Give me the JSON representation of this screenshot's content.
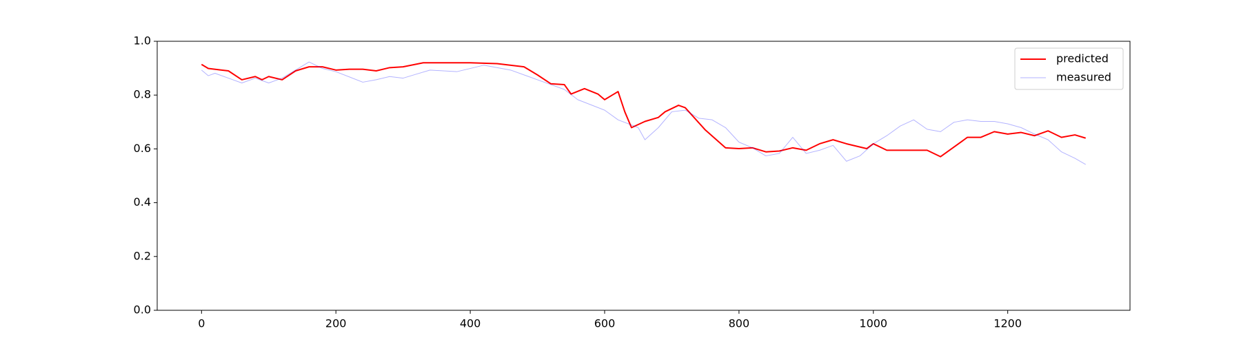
{
  "chart_data": {
    "type": "line",
    "xlim": [
      -66,
      1382
    ],
    "ylim": [
      0,
      1
    ],
    "xticks": [
      0,
      200,
      400,
      600,
      800,
      1000,
      1200
    ],
    "yticks": [
      {
        "value": 0,
        "label": "0.0"
      },
      {
        "value": 0.2,
        "label": "0.2"
      },
      {
        "value": 0.4,
        "label": "0.4"
      },
      {
        "value": 0.6,
        "label": "0.6"
      },
      {
        "value": 0.8,
        "label": "0.8"
      },
      {
        "value": 1,
        "label": "1.0"
      }
    ],
    "legend": "upper right",
    "series": [
      {
        "name": "predicted",
        "color": "#ff0000",
        "width": 2,
        "alpha": 1,
        "x": [
          0,
          10,
          30,
          40,
          60,
          80,
          90,
          100,
          120,
          140,
          160,
          180,
          200,
          220,
          240,
          260,
          280,
          300,
          330,
          360,
          400,
          440,
          480,
          500,
          520,
          540,
          550,
          570,
          590,
          600,
          620,
          630,
          640,
          660,
          680,
          690,
          710,
          720,
          750,
          780,
          800,
          820,
          840,
          860,
          880,
          900,
          920,
          940,
          960,
          990,
          1000,
          1020,
          1060,
          1080,
          1100,
          1120,
          1140,
          1160,
          1180,
          1200,
          1220,
          1240,
          1260,
          1280,
          1300,
          1316
        ],
        "values": [
          0.914,
          0.899,
          0.893,
          0.89,
          0.857,
          0.869,
          0.857,
          0.869,
          0.857,
          0.89,
          0.905,
          0.905,
          0.893,
          0.896,
          0.896,
          0.89,
          0.902,
          0.905,
          0.92,
          0.92,
          0.92,
          0.917,
          0.905,
          0.875,
          0.842,
          0.839,
          0.804,
          0.824,
          0.804,
          0.783,
          0.813,
          0.738,
          0.679,
          0.702,
          0.717,
          0.738,
          0.762,
          0.753,
          0.67,
          0.604,
          0.601,
          0.604,
          0.589,
          0.592,
          0.604,
          0.595,
          0.619,
          0.634,
          0.619,
          0.601,
          0.619,
          0.595,
          0.595,
          0.595,
          0.571,
          0.607,
          0.643,
          0.643,
          0.664,
          0.655,
          0.661,
          0.649,
          0.667,
          0.643,
          0.652,
          0.64
        ]
      },
      {
        "name": "measured",
        "color": "#0000ff",
        "width": 1,
        "alpha": 0.3,
        "x": [
          0,
          10,
          20,
          40,
          60,
          80,
          100,
          120,
          140,
          160,
          180,
          200,
          240,
          260,
          280,
          300,
          320,
          340,
          380,
          420,
          460,
          500,
          540,
          560,
          600,
          620,
          650,
          660,
          680,
          700,
          720,
          740,
          760,
          780,
          800,
          820,
          840,
          860,
          880,
          900,
          920,
          940,
          960,
          980,
          1000,
          1020,
          1040,
          1060,
          1080,
          1100,
          1120,
          1140,
          1160,
          1180,
          1200,
          1220,
          1240,
          1260,
          1280,
          1300,
          1316
        ],
        "values": [
          0.893,
          0.872,
          0.881,
          0.863,
          0.845,
          0.863,
          0.845,
          0.863,
          0.893,
          0.923,
          0.899,
          0.887,
          0.848,
          0.857,
          0.869,
          0.863,
          0.878,
          0.893,
          0.887,
          0.911,
          0.893,
          0.857,
          0.821,
          0.783,
          0.744,
          0.708,
          0.679,
          0.634,
          0.679,
          0.738,
          0.744,
          0.714,
          0.708,
          0.679,
          0.625,
          0.604,
          0.574,
          0.583,
          0.643,
          0.583,
          0.595,
          0.613,
          0.554,
          0.574,
          0.619,
          0.649,
          0.685,
          0.708,
          0.673,
          0.664,
          0.699,
          0.708,
          0.702,
          0.702,
          0.693,
          0.679,
          0.655,
          0.634,
          0.589,
          0.565,
          0.542
        ]
      }
    ]
  }
}
